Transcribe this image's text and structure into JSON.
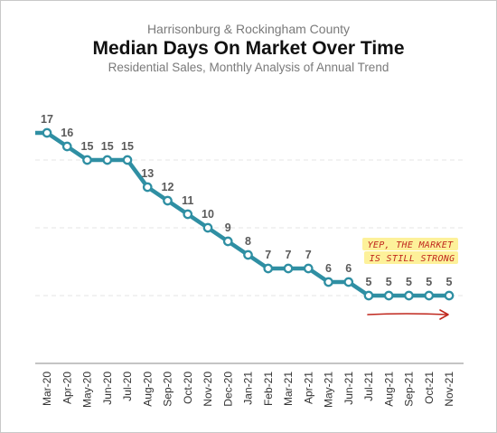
{
  "chart_data": {
    "type": "line",
    "supertitle": "Harrisonburg & Rockingham County",
    "title": "Median Days On Market Over Time",
    "subtitle": "Residential Sales, Monthly Analysis of Annual Trend",
    "xlabel": "",
    "ylabel": "",
    "categories": [
      "Mar-20",
      "Apr-20",
      "May-20",
      "Jun-20",
      "Jul-20",
      "Aug-20",
      "Sep-20",
      "Oct-20",
      "Nov-20",
      "Dec-20",
      "Jan-21",
      "Feb-21",
      "Mar-21",
      "Apr-21",
      "May-21",
      "Jun-21",
      "Jul-21",
      "Aug-21",
      "Sep-21",
      "Oct-21",
      "Nov-21"
    ],
    "series": [
      {
        "values": [
          17,
          16,
          15,
          15,
          15,
          13,
          12,
          11,
          10,
          9,
          8,
          7,
          7,
          7,
          6,
          6,
          5,
          5,
          5,
          5,
          5
        ]
      }
    ],
    "data_labels": [
      "17",
      "16",
      "15",
      "15",
      "15",
      "13",
      "12",
      "11",
      "10",
      "9",
      "8",
      "7",
      "7",
      "7",
      "6",
      "6",
      "5",
      "5",
      "5",
      "5",
      "5"
    ],
    "ylim": [
      0,
      20
    ],
    "grid": "horizontal-dashed",
    "legend": "none",
    "colors": {
      "line": "#2f8fa3",
      "marker_fill": "#ffffff",
      "annotation_text": "#c0281e",
      "annotation_highlight": "#fdf19a",
      "arrow": "#c0281e"
    },
    "annotation": {
      "lines": [
        "YEP, THE MARKET",
        "IS STILL STRONG"
      ],
      "arrow": "right"
    }
  }
}
